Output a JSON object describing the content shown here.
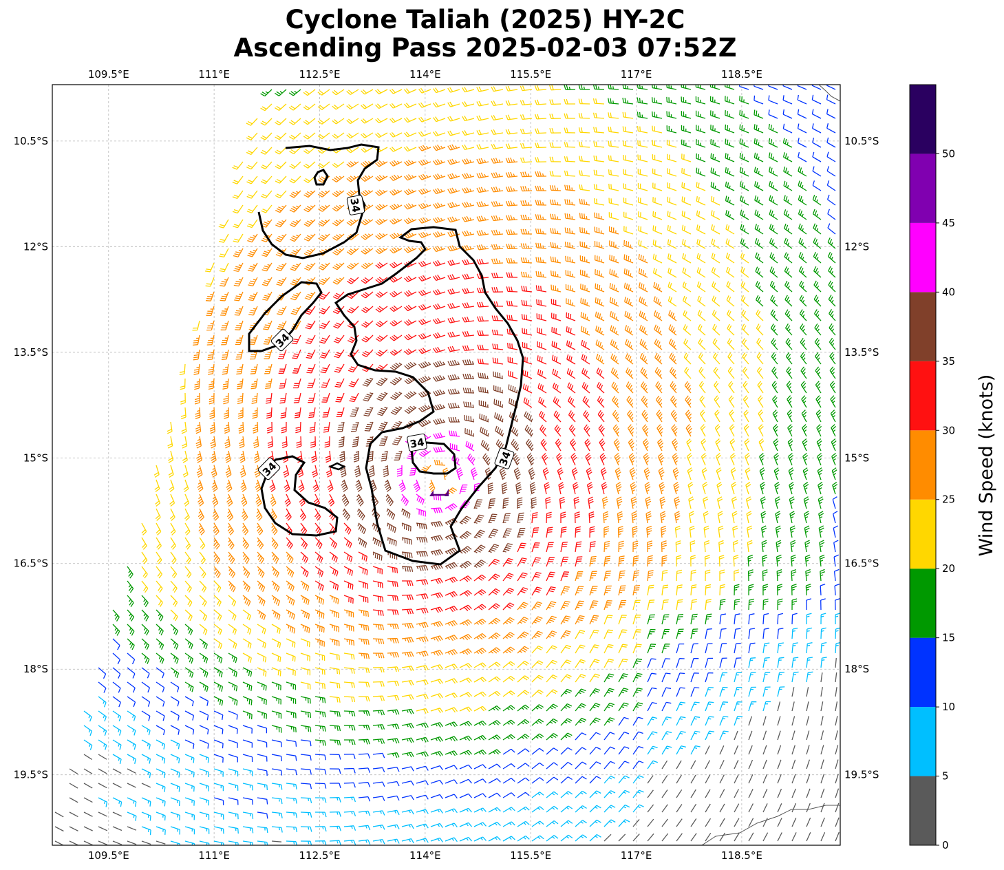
{
  "title_line1": "Cyclone Taliah (2025) HY-2C",
  "title_line2": "Ascending Pass 2025-02-03 07:52Z",
  "map": {
    "lon_ticks": [
      "109.5°E",
      "111°E",
      "112.5°E",
      "114°E",
      "115.5°E",
      "117°E",
      "118.5°E"
    ],
    "lon_values": [
      109.5,
      111,
      112.5,
      114,
      115.5,
      117,
      118.5
    ],
    "lat_ticks": [
      "10.5°S",
      "12°S",
      "13.5°S",
      "15°S",
      "16.5°S",
      "18°S",
      "19.5°S"
    ],
    "lat_values": [
      -10.5,
      -12,
      -13.5,
      -15,
      -16.5,
      -18,
      -19.5
    ],
    "lon_range": [
      108.7,
      119.9
    ],
    "lat_range": [
      -20.5,
      -9.7
    ],
    "grid": true,
    "center": {
      "lon": 114.2,
      "lat": -15.3
    },
    "contour_label": "34",
    "coastline_color": "#555555"
  },
  "colorbar": {
    "label": "Wind Speed (knots)",
    "tick_labels": [
      "0",
      "5",
      "10",
      "15",
      "20",
      "25",
      "30",
      "35",
      "40",
      "45",
      "50"
    ],
    "bins": [
      {
        "min": 0,
        "max": 5,
        "color": "#5a5a5a"
      },
      {
        "min": 5,
        "max": 10,
        "color": "#00bfff"
      },
      {
        "min": 10,
        "max": 15,
        "color": "#0033ff"
      },
      {
        "min": 15,
        "max": 20,
        "color": "#009900"
      },
      {
        "min": 20,
        "max": 25,
        "color": "#ffd700"
      },
      {
        "min": 25,
        "max": 30,
        "color": "#ff8c00"
      },
      {
        "min": 30,
        "max": 35,
        "color": "#ff1111"
      },
      {
        "min": 35,
        "max": 40,
        "color": "#80402a"
      },
      {
        "min": 40,
        "max": 45,
        "color": "#ff00ff"
      },
      {
        "min": 45,
        "max": 50,
        "color": "#8000b0"
      },
      {
        "min": 50,
        "max": 55,
        "color": "#2a0060"
      }
    ]
  }
}
